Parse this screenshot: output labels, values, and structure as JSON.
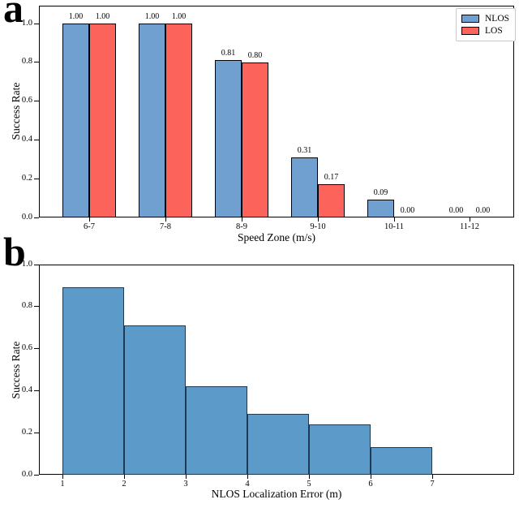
{
  "chart_data": [
    {
      "panel": "a",
      "type": "bar",
      "title": "",
      "categories": [
        "6-7",
        "7-8",
        "8-9",
        "9-10",
        "10-11",
        "11-12"
      ],
      "series": [
        {
          "name": "NLOS",
          "color": "#6FA0CF",
          "values": [
            1.0,
            1.0,
            0.81,
            0.31,
            0.09,
            0.0
          ]
        },
        {
          "name": "LOS",
          "color": "#FB635B",
          "values": [
            1.0,
            1.0,
            0.8,
            0.17,
            0.0,
            0.0
          ]
        }
      ],
      "bar_value_labels": [
        [
          "1.00",
          "1.00",
          "0.81",
          "0.31",
          "0.09",
          "0.00"
        ],
        [
          "1.00",
          "1.00",
          "0.80",
          "0.17",
          "0.00",
          "0.00"
        ]
      ],
      "xlabel": "Speed Zone (m/s)",
      "ylabel": "Success Rate",
      "yticks": [
        "0.0",
        "0.2",
        "0.4",
        "0.6",
        "0.8",
        "1.0"
      ],
      "ylim": [
        0.0,
        1.09
      ],
      "grid": false,
      "legend": {
        "position": "upper-right",
        "entries": [
          {
            "label": "NLOS",
            "color": "#6FA0CF"
          },
          {
            "label": "LOS",
            "color": "#FB635B"
          }
        ]
      },
      "bar_edge_color": "#000000"
    },
    {
      "panel": "b",
      "type": "histogram",
      "title": "",
      "bin_edges": [
        1,
        2,
        3,
        4,
        5,
        6,
        7
      ],
      "xticks": [
        "1",
        "2",
        "3",
        "4",
        "5",
        "6",
        "7"
      ],
      "values": [
        0.89,
        0.71,
        0.42,
        0.29,
        0.24,
        0.13
      ],
      "xlabel": "NLOS Localization Error (m)",
      "ylabel": "Success Rate",
      "yticks": [
        "0.0",
        "0.2",
        "0.4",
        "0.6",
        "0.8",
        "1.0"
      ],
      "ylim": [
        0.0,
        1.0
      ],
      "xlim": [
        0.6,
        8.3
      ],
      "grid": false,
      "bar_color": "#5B9AC9",
      "bar_edge_color": "#1F3A55"
    }
  ]
}
